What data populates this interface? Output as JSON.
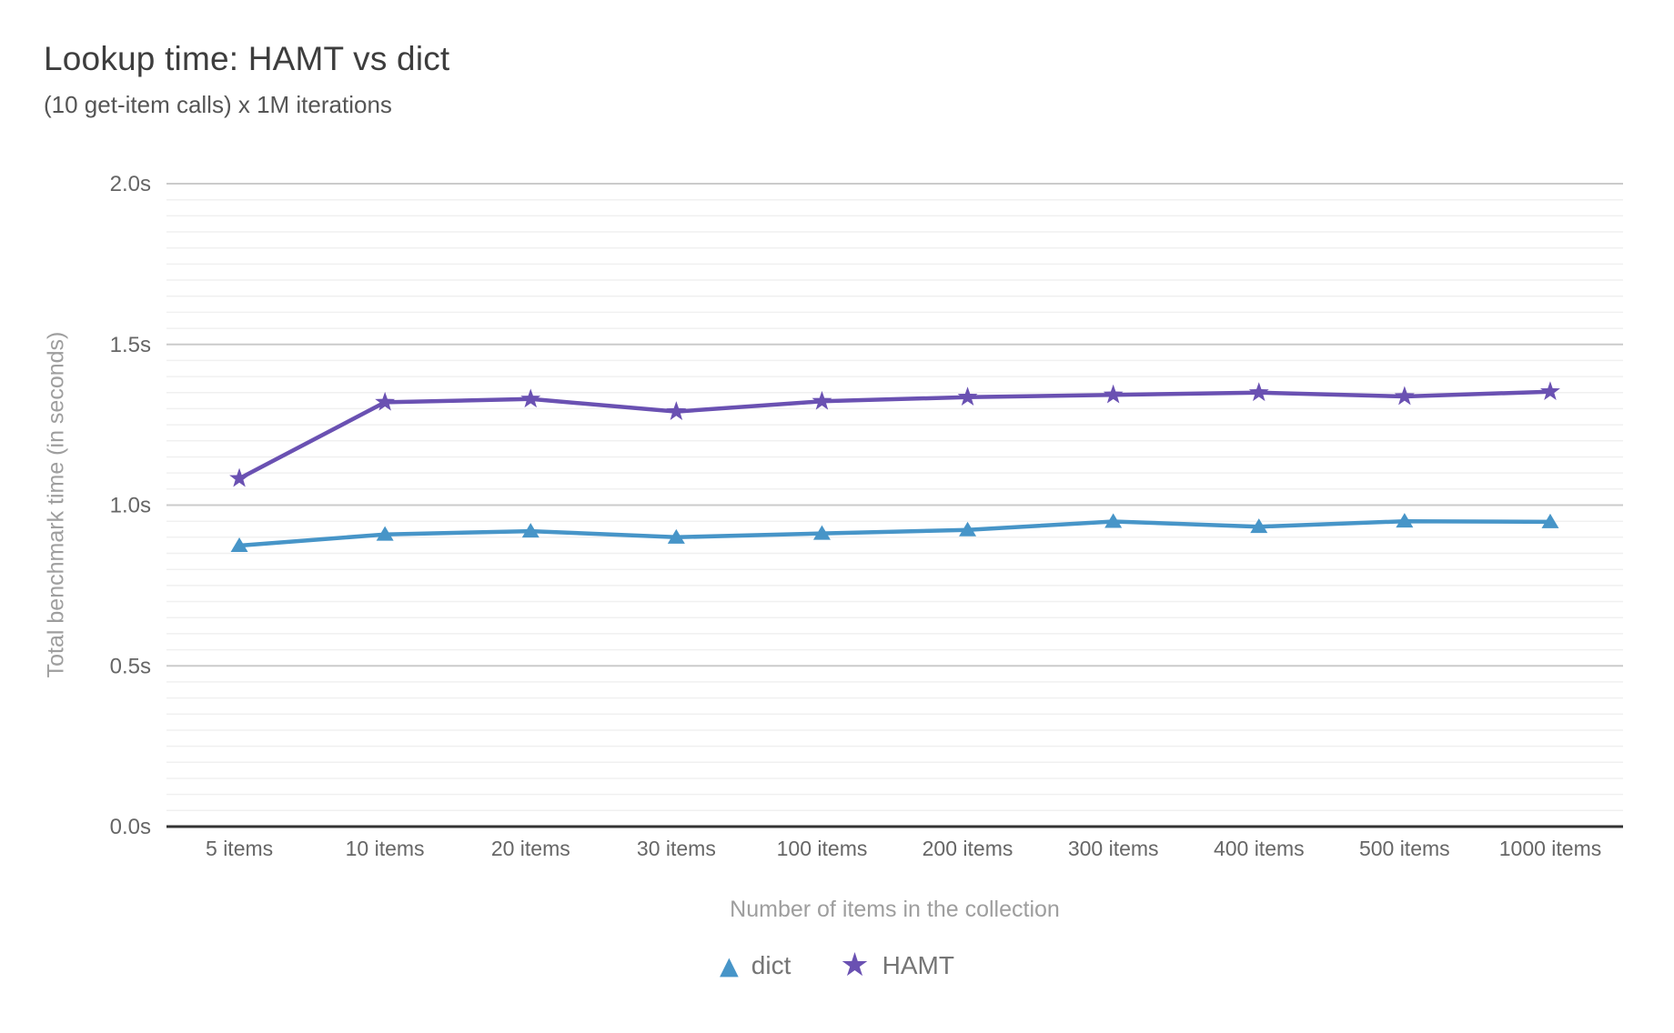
{
  "chart_data": {
    "type": "line",
    "title": "Lookup time: HAMT vs dict",
    "subtitle": "(10 get-item calls) x 1M iterations",
    "xlabel": "Number of items in the collection",
    "ylabel": "Total benchmark time (in seconds)",
    "categories": [
      "5 items",
      "10 items",
      "20 items",
      "30 items",
      "100 items",
      "200 items",
      "300 items",
      "400 items",
      "500 items",
      "1000 items"
    ],
    "series": [
      {
        "name": "dict",
        "marker": "triangle",
        "color": "#4795c8",
        "values": [
          0.874,
          0.909,
          0.919,
          0.9,
          0.912,
          0.923,
          0.949,
          0.933,
          0.95,
          0.948
        ]
      },
      {
        "name": "HAMT",
        "marker": "star",
        "color": "#6a51b2",
        "values": [
          1.083,
          1.32,
          1.33,
          1.291,
          1.323,
          1.336,
          1.343,
          1.35,
          1.338,
          1.353
        ]
      }
    ],
    "ylim": [
      0,
      2
    ],
    "yticks": [
      {
        "value": 0.0,
        "label": "0.0s"
      },
      {
        "value": 0.5,
        "label": "0.5s"
      },
      {
        "value": 1.0,
        "label": "1.0s"
      },
      {
        "value": 1.5,
        "label": "1.5s"
      },
      {
        "value": 2.0,
        "label": "2.0s"
      }
    ],
    "minor_tick_step": 0.05,
    "grid": {
      "major_color": "#cbcbcb",
      "minor_color": "#f0f0f0",
      "baseline_color": "#333333"
    },
    "text_colors": {
      "tick_label": "#666666",
      "axis_title": "#9e9e9e",
      "legend_label": "#757575"
    },
    "legend_position": "bottom"
  }
}
